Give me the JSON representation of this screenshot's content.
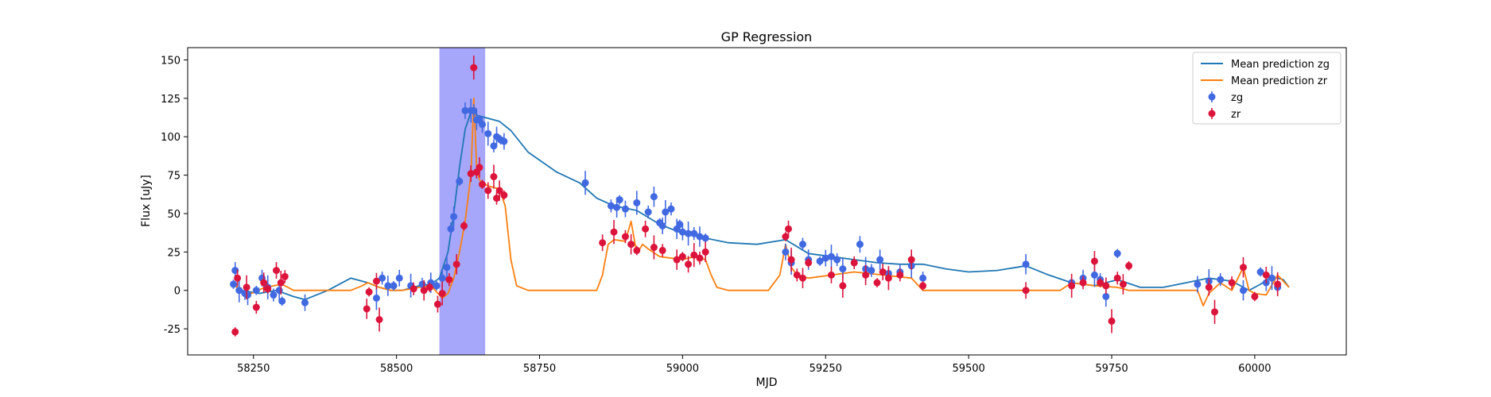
{
  "chart_data": {
    "type": "scatter",
    "title": "GP Regression",
    "xlabel": "MJD",
    "ylabel": "Flux [uJy]",
    "xlim": [
      58135,
      60160
    ],
    "ylim": [
      -42,
      158
    ],
    "xticks": [
      58250,
      58500,
      58750,
      59000,
      59250,
      59500,
      59750,
      60000
    ],
    "yticks": [
      -25,
      0,
      25,
      50,
      75,
      100,
      125,
      150
    ],
    "highlight_span": [
      58575,
      58655
    ],
    "legend_position": "upper right",
    "colors": {
      "mean_zg": "#1f77b4",
      "mean_zr": "#ff7f0e",
      "points_zg": "#4169e1",
      "points_zr": "#dc143c",
      "span": "#8080f8"
    },
    "legend": [
      {
        "label": "Mean prediction zg",
        "kind": "line",
        "color": "#1f77b4"
      },
      {
        "label": "Mean prediction zr",
        "kind": "line",
        "color": "#ff7f0e"
      },
      {
        "label": "zg",
        "kind": "marker",
        "color": "#4169e1"
      },
      {
        "label": "zr",
        "kind": "marker",
        "color": "#dc143c"
      }
    ],
    "series": [
      {
        "name": "Mean prediction zg",
        "kind": "line",
        "x": [
          58210,
          58230,
          58260,
          58290,
          58320,
          58340,
          58380,
          58420,
          58450,
          58470,
          58490,
          58510,
          58540,
          58560,
          58575,
          58590,
          58600,
          58610,
          58620,
          58630,
          58640,
          58660,
          58680,
          58700,
          58730,
          58780,
          58820,
          58850,
          58880,
          58920,
          58960,
          59000,
          59040,
          59080,
          59130,
          59180,
          59220,
          59260,
          59300,
          59340,
          59380,
          59420,
          59460,
          59500,
          59550,
          59600,
          59640,
          59680,
          59720,
          59760,
          59800,
          59840,
          59880,
          59920,
          59960,
          59990,
          60010,
          60030,
          60050,
          60060
        ],
        "y": [
          5,
          0,
          -2,
          0,
          -4,
          -6,
          0,
          8,
          5,
          2,
          0,
          0,
          3,
          4,
          8,
          25,
          50,
          80,
          105,
          116,
          114,
          112,
          110,
          104,
          90,
          77,
          70,
          60,
          55,
          52,
          43,
          37,
          34,
          31,
          30,
          33,
          24,
          22,
          20,
          18,
          17,
          17,
          14,
          12,
          13,
          16,
          10,
          5,
          3,
          7,
          2,
          2,
          5,
          8,
          6,
          0,
          4,
          9,
          7,
          2
        ]
      },
      {
        "name": "Mean prediction zr",
        "kind": "line",
        "x": [
          58210,
          58240,
          58270,
          58300,
          58320,
          58360,
          58420,
          58440,
          58450,
          58470,
          58490,
          58510,
          58540,
          58560,
          58580,
          58590,
          58600,
          58610,
          58620,
          58630,
          58635,
          58640,
          58645,
          58650,
          58660,
          58670,
          58680,
          58690,
          58700,
          58710,
          58730,
          58800,
          58850,
          58860,
          58870,
          58880,
          58900,
          58910,
          58920,
          58930,
          58940,
          58960,
          58980,
          59000,
          59020,
          59040,
          59050,
          59060,
          59080,
          59150,
          59170,
          59180,
          59190,
          59200,
          59220,
          59260,
          59300,
          59350,
          59400,
          59420,
          59440,
          59600,
          59660,
          59680,
          59720,
          59760,
          59780,
          59800,
          59900,
          59910,
          59920,
          59940,
          59960,
          59980,
          59990,
          60000,
          60020,
          60040,
          60060
        ],
        "y": [
          5,
          -3,
          2,
          4,
          0,
          0,
          0,
          3,
          5,
          2,
          0,
          0,
          2,
          3,
          -5,
          -2,
          8,
          25,
          45,
          75,
          125,
          80,
          72,
          70,
          68,
          67,
          66,
          55,
          20,
          3,
          0,
          0,
          0,
          10,
          30,
          33,
          32,
          45,
          24,
          30,
          27,
          22,
          21,
          20,
          22,
          20,
          10,
          2,
          0,
          0,
          10,
          30,
          15,
          10,
          8,
          10,
          12,
          10,
          8,
          0,
          0,
          0,
          0,
          5,
          3,
          2,
          0,
          0,
          0,
          -10,
          -2,
          5,
          0,
          15,
          0,
          -2,
          -3,
          10,
          2
        ]
      },
      {
        "name": "zg",
        "kind": "points",
        "x": [
          58215,
          58218,
          58225,
          58235,
          58240,
          58255,
          58265,
          58275,
          58285,
          58295,
          58300,
          58340,
          58465,
          58475,
          58485,
          58495,
          58505,
          58525,
          58545,
          58560,
          58570,
          58580,
          58588,
          58595,
          58600,
          58610,
          58620,
          58630,
          58635,
          58640,
          58645,
          58650,
          58660,
          58670,
          58675,
          58682,
          58688,
          58830,
          58875,
          58885,
          58890,
          58900,
          58920,
          58940,
          58950,
          58960,
          58965,
          58970,
          58980,
          58990,
          58995,
          59000,
          59010,
          59020,
          59030,
          59040,
          59180,
          59190,
          59210,
          59220,
          59240,
          59250,
          59260,
          59270,
          59280,
          59300,
          59310,
          59320,
          59330,
          59345,
          59360,
          59380,
          59400,
          59420,
          59600,
          59680,
          59700,
          59720,
          59730,
          59740,
          59760,
          59900,
          59920,
          59940,
          59980,
          60010,
          60020,
          60030,
          60040
        ],
        "y": [
          4,
          13,
          0,
          -2,
          -3,
          0,
          8,
          2,
          -3,
          0,
          -7,
          -8,
          -5,
          8,
          3,
          3,
          8,
          3,
          4,
          5,
          3,
          8,
          15,
          40,
          48,
          71,
          117,
          117,
          117,
          111,
          111,
          108,
          102,
          94,
          100,
          98,
          97,
          70,
          55,
          54,
          59,
          53,
          57,
          51,
          61,
          44,
          42,
          51,
          53,
          40,
          43,
          38,
          37,
          37,
          35,
          34,
          25,
          18,
          30,
          20,
          19,
          21,
          22,
          20,
          14,
          18,
          30,
          14,
          13,
          20,
          11,
          12,
          16,
          8,
          17,
          5,
          8,
          10,
          7,
          -4,
          24,
          4,
          6,
          7,
          0,
          12,
          5,
          8,
          2
        ]
      },
      {
        "name": "zr",
        "kind": "points",
        "x": [
          58218,
          58222,
          58238,
          58255,
          58268,
          58275,
          58290,
          58298,
          58305,
          58448,
          58452,
          58465,
          58470,
          58530,
          58548,
          58558,
          58572,
          58580,
          58592,
          58605,
          58618,
          58630,
          58635,
          58640,
          58645,
          58650,
          58660,
          58670,
          58675,
          58680,
          58688,
          58860,
          58880,
          58900,
          58910,
          58920,
          58935,
          58950,
          58965,
          58990,
          59000,
          59010,
          59020,
          59030,
          59040,
          59180,
          59185,
          59190,
          59200,
          59210,
          59220,
          59260,
          59280,
          59300,
          59320,
          59340,
          59350,
          59360,
          59380,
          59400,
          59420,
          59600,
          59680,
          59700,
          59720,
          59730,
          59740,
          59750,
          59760,
          59770,
          59780,
          59920,
          59930,
          59960,
          59980,
          60000,
          60020,
          60040
        ],
        "y": [
          -27,
          8,
          2,
          -11,
          5,
          1,
          13,
          5,
          9,
          -12,
          -1,
          6,
          -19,
          1,
          0,
          2,
          -9,
          -2,
          7,
          17,
          42,
          76,
          145,
          77,
          80,
          69,
          65,
          74,
          60,
          65,
          62,
          31,
          38,
          35,
          30,
          26,
          40,
          28,
          26,
          20,
          22,
          17,
          23,
          21,
          25,
          35,
          40,
          20,
          10,
          8,
          18,
          10,
          3,
          18,
          10,
          5,
          12,
          8,
          10,
          20,
          3,
          0,
          3,
          5,
          19,
          5,
          3,
          -20,
          8,
          4,
          16,
          2,
          -14,
          5,
          15,
          -4,
          10,
          4
        ]
      }
    ]
  }
}
